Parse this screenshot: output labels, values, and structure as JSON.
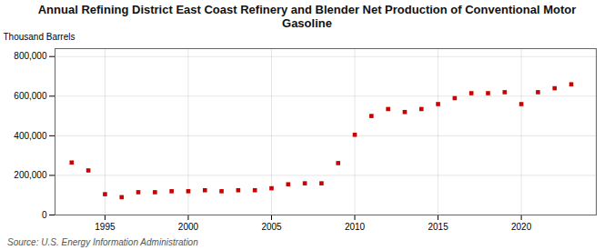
{
  "chart_data": {
    "type": "scatter",
    "title": "Annual Refining District East Coast Refinery and Blender Net Production of Conventional Motor\nGasoline",
    "ylabel": "Thousand Barrels",
    "source": "Source: U.S. Energy Information Administration",
    "x": [
      1993,
      1994,
      1995,
      1996,
      1997,
      1998,
      1999,
      2000,
      2001,
      2002,
      2003,
      2004,
      2005,
      2006,
      2007,
      2008,
      2009,
      2010,
      2011,
      2012,
      2013,
      2014,
      2015,
      2016,
      2017,
      2018,
      2019,
      2020,
      2021,
      2022,
      2023
    ],
    "values": [
      265000,
      225000,
      105000,
      90000,
      115000,
      115000,
      120000,
      120000,
      125000,
      120000,
      125000,
      125000,
      135000,
      155000,
      160000,
      160000,
      262000,
      405000,
      500000,
      535000,
      520000,
      535000,
      560000,
      590000,
      615000,
      615000,
      620000,
      560000,
      620000,
      640000,
      660000
    ],
    "color": "#cc0000",
    "marker": "square",
    "xlim": [
      1992.0,
      2024.5
    ],
    "xticks": [
      1995,
      2000,
      2005,
      2010,
      2015,
      2020
    ],
    "ylim": [
      0,
      840000
    ],
    "yticks": [
      0,
      {
        "value": 200000,
        "label": "200,000"
      },
      {
        "value": 400000,
        "label": "400,000"
      },
      {
        "value": 600000,
        "label": "600,000"
      },
      {
        "value": 800000,
        "label": "800,000"
      }
    ],
    "grid": true
  }
}
